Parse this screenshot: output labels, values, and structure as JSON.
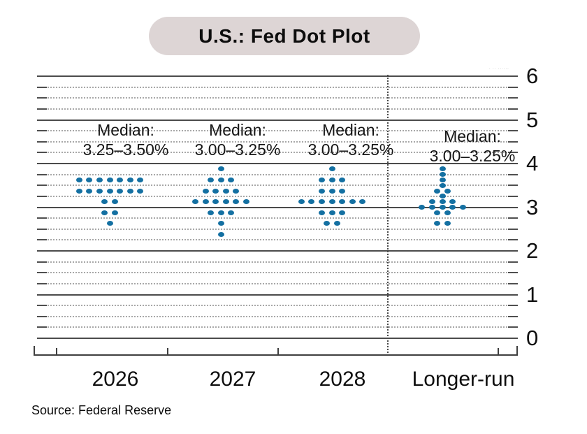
{
  "title": "U.S.: Fed Dot Plot",
  "source_note": "Source: Federal Reserve",
  "watermark": "· ·· ······",
  "colors": {
    "dot": "#1470a2",
    "title_pill_bg": "#ddd5d5",
    "grid_major": "#4b4b4b",
    "grid_minor": "#a8a8a8"
  },
  "chart_data": {
    "type": "scatter",
    "title": "U.S.: Fed Dot Plot",
    "subtitle": "",
    "xlabel": "",
    "ylabel": "",
    "ylim": [
      0,
      6
    ],
    "y_major_ticks": [
      6,
      5,
      4,
      3,
      2,
      1,
      0
    ],
    "y_minor_step": 0.25,
    "grid": "major solid, minor dotted, right-side axis labels",
    "legend_position": "none",
    "categories": [
      "2026",
      "2027",
      "2028",
      "Longer-run"
    ],
    "median_word": "Median:",
    "medians": [
      "3.25–3.50%",
      "3.00–3.25%",
      "3.00–3.25%",
      "3.00–3.25%"
    ],
    "separator_before_category": "Longer-run",
    "dots": {
      "2026": [
        {
          "rate": 3.625,
          "count": 7
        },
        {
          "rate": 3.375,
          "count": 7
        },
        {
          "rate": 3.125,
          "count": 2
        },
        {
          "rate": 2.875,
          "count": 2
        },
        {
          "rate": 2.625,
          "count": 1
        }
      ],
      "2027": [
        {
          "rate": 3.875,
          "count": 1
        },
        {
          "rate": 3.625,
          "count": 3
        },
        {
          "rate": 3.375,
          "count": 4
        },
        {
          "rate": 3.125,
          "count": 6
        },
        {
          "rate": 2.875,
          "count": 3
        },
        {
          "rate": 2.625,
          "count": 1
        },
        {
          "rate": 2.375,
          "count": 1
        }
      ],
      "2028": [
        {
          "rate": 3.875,
          "count": 1
        },
        {
          "rate": 3.625,
          "count": 3
        },
        {
          "rate": 3.375,
          "count": 3
        },
        {
          "rate": 3.125,
          "count": 7
        },
        {
          "rate": 2.875,
          "count": 3
        },
        {
          "rate": 2.625,
          "count": 2
        }
      ],
      "Longer-run": [
        {
          "rate": 3.875,
          "count": 1
        },
        {
          "rate": 3.75,
          "count": 1
        },
        {
          "rate": 3.625,
          "count": 1
        },
        {
          "rate": 3.5,
          "count": 1
        },
        {
          "rate": 3.375,
          "count": 2
        },
        {
          "rate": 3.25,
          "count": 1
        },
        {
          "rate": 3.125,
          "count": 3
        },
        {
          "rate": 3.0,
          "count": 5
        },
        {
          "rate": 2.875,
          "count": 2
        },
        {
          "rate": 2.625,
          "count": 2
        }
      ]
    }
  }
}
